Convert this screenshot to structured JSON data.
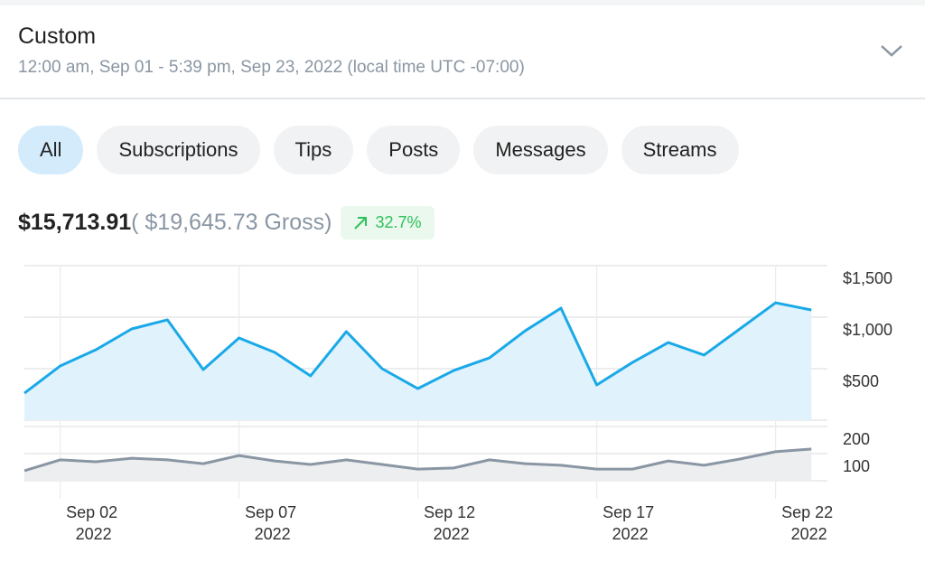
{
  "header": {
    "title": "Custom",
    "subtitle": "12:00 am, Sep 01 - 5:39 pm, Sep 23, 2022 (local time UTC -07:00)"
  },
  "filters": [
    {
      "label": "All",
      "active": true
    },
    {
      "label": "Subscriptions"
    },
    {
      "label": "Tips"
    },
    {
      "label": "Posts"
    },
    {
      "label": "Messages"
    },
    {
      "label": "Streams"
    }
  ],
  "summary": {
    "net": "$15,713.91",
    "gross": "( $19,645.73 Gross)",
    "change": "32.7%",
    "change_color": "#2fc15b"
  },
  "colors": {
    "earnings_line": "#1aa9e8",
    "earnings_fill": "#e0f3fc",
    "count_line": "#8a96a3",
    "count_fill": "#eceef0"
  },
  "chart_data": [
    {
      "type": "area",
      "name": "earnings",
      "x": [
        "Sep 01",
        "Sep 02",
        "Sep 03",
        "Sep 04",
        "Sep 05",
        "Sep 06",
        "Sep 07",
        "Sep 08",
        "Sep 09",
        "Sep 10",
        "Sep 11",
        "Sep 12",
        "Sep 13",
        "Sep 14",
        "Sep 15",
        "Sep 16",
        "Sep 17",
        "Sep 18",
        "Sep 19",
        "Sep 20",
        "Sep 21",
        "Sep 22",
        "Sep 23"
      ],
      "values": [
        263,
        526,
        684,
        886,
        974,
        491,
        798,
        658,
        430,
        860,
        500,
        307,
        482,
        605,
        868,
        1088,
        342,
        561,
        754,
        632,
        886,
        1140,
        1070
      ],
      "ylim": [
        0,
        1500
      ],
      "yticks": [
        "$500",
        "$1,000",
        "$1,500"
      ],
      "ytick_values": [
        500,
        1000,
        1500
      ],
      "grid": true
    },
    {
      "type": "area",
      "name": "count",
      "values": [
        37,
        77,
        70,
        83,
        77,
        63,
        93,
        73,
        60,
        77,
        60,
        43,
        47,
        77,
        63,
        57,
        43,
        43,
        73,
        57,
        80,
        107,
        117
      ],
      "ylim": [
        0,
        200
      ],
      "yticks": [
        "100",
        "200"
      ],
      "ytick_values": [
        100,
        200
      ],
      "xticks": [
        {
          "index": 1,
          "label": "Sep 02",
          "year": "2022"
        },
        {
          "index": 6,
          "label": "Sep 07",
          "year": "2022"
        },
        {
          "index": 11,
          "label": "Sep 12",
          "year": "2022"
        },
        {
          "index": 16,
          "label": "Sep 17",
          "year": "2022"
        },
        {
          "index": 21,
          "label": "Sep 22",
          "year": "2022"
        }
      ]
    }
  ]
}
